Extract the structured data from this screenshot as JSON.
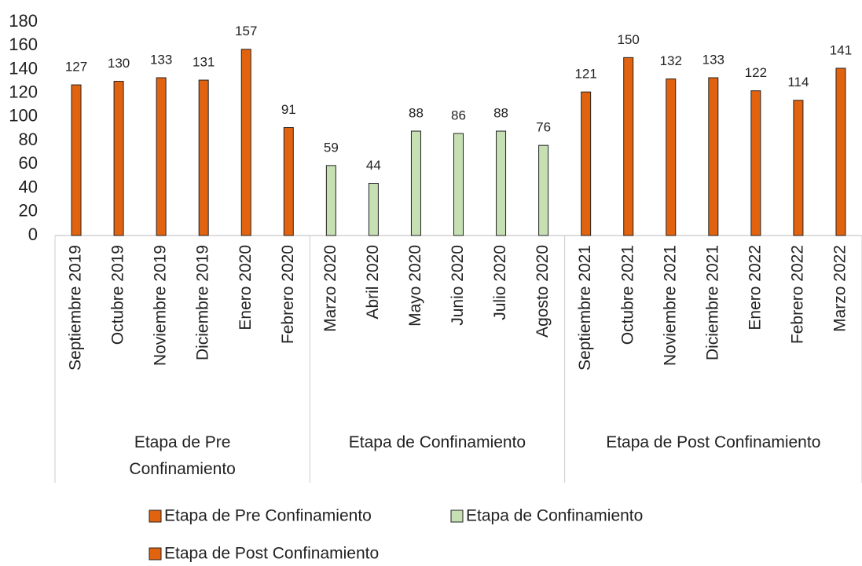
{
  "chart_data": {
    "type": "bar",
    "ylim": [
      0,
      180
    ],
    "yticks": [
      0,
      20,
      40,
      60,
      80,
      100,
      120,
      140,
      160,
      180
    ],
    "series": [
      {
        "name": "Etapa de Pre Confinamiento",
        "color": "#e2630f",
        "categories": [
          "Septiembre 2019",
          "Octubre 2019",
          "Noviembre 2019",
          "Diciembre 2019",
          "Enero 2020",
          "Febrero 2020"
        ],
        "values": [
          127,
          130,
          133,
          131,
          157,
          91
        ]
      },
      {
        "name": "Etapa de Confinamiento",
        "color": "#c6e0b4",
        "categories": [
          "Marzo 2020",
          "Abril 2020",
          "Mayo 2020",
          "Junio 2020",
          "Julio 2020",
          "Agosto 2020"
        ],
        "values": [
          59,
          44,
          88,
          86,
          88,
          76
        ]
      },
      {
        "name": "Etapa de Post Confinamiento",
        "color": "#e2630f",
        "categories": [
          "Septiembre 2021",
          "Octubre 2021",
          "Noviembre 2021",
          "Diciembre 2021",
          "Enero 2022",
          "Febrero 2022",
          "Marzo 2022"
        ],
        "values": [
          121,
          150,
          132,
          133,
          122,
          114,
          141
        ]
      }
    ]
  }
}
